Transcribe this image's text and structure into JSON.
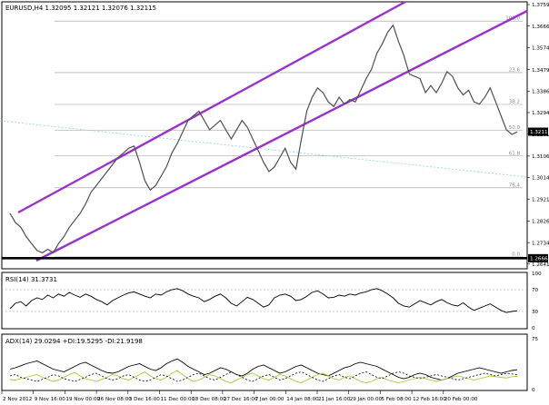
{
  "chart_data": {
    "type": "line",
    "main": {
      "header": "EURUSD,H4  1.32095 1.32121 1.32076 1.32115",
      "ylim": [
        1.2625,
        1.3767
      ],
      "price_ticks": [
        "1.37590",
        "1.36665",
        "1.35740",
        "1.34790",
        "1.33865",
        "1.32940",
        "1.32015",
        "1.31065",
        "1.30140",
        "1.29215",
        "1.28265",
        "1.27340",
        "1.26415"
      ],
      "price_tick_values": [
        1.3759,
        1.36665,
        1.3574,
        1.3479,
        1.33865,
        1.3294,
        1.32015,
        1.31065,
        1.3014,
        1.29215,
        1.28265,
        1.2734,
        1.26415
      ],
      "current_price_label": "1.32115",
      "current_price": 1.32115,
      "support_label": "1.26667",
      "support_price": 1.26667,
      "fib_levels": [
        {
          "label": "100.0",
          "value": 1.3688
        },
        {
          "label": "23.6",
          "value": 1.3466
        },
        {
          "label": "38.2",
          "value": 1.3329
        },
        {
          "label": "50.0",
          "value": 1.3218
        },
        {
          "label": "61.8",
          "value": 1.3107
        },
        {
          "label": "76.4",
          "value": 1.297
        },
        {
          "label": "0.0",
          "value": 1.2672
        }
      ],
      "price_series": [
        1.286,
        1.282,
        1.28,
        1.276,
        1.273,
        1.27,
        1.269,
        1.2705,
        1.269,
        1.273,
        1.276,
        1.28,
        1.283,
        1.286,
        1.29,
        1.295,
        1.298,
        1.301,
        1.304,
        1.307,
        1.31,
        1.312,
        1.314,
        1.315,
        1.308,
        1.3,
        1.296,
        1.298,
        1.302,
        1.306,
        1.312,
        1.316,
        1.321,
        1.326,
        1.328,
        1.33,
        1.326,
        1.322,
        1.324,
        1.326,
        1.322,
        1.318,
        1.322,
        1.326,
        1.323,
        1.318,
        1.313,
        1.308,
        1.304,
        1.306,
        1.31,
        1.314,
        1.308,
        1.305,
        1.318,
        1.33,
        1.336,
        1.34,
        1.338,
        1.334,
        1.332,
        1.336,
        1.333,
        1.335,
        1.334,
        1.339,
        1.344,
        1.348,
        1.355,
        1.359,
        1.364,
        1.367,
        1.36,
        1.354,
        1.346,
        1.345,
        1.344,
        1.338,
        1.341,
        1.338,
        1.342,
        1.347,
        1.345,
        1.34,
        1.337,
        1.339,
        1.334,
        1.333,
        1.336,
        1.34,
        1.334,
        1.328,
        1.322,
        1.32,
        1.3211
      ]
    },
    "x_ticks": [
      "2 Nov 2012",
      "9 Nov 16:00",
      "19 Nov 00:00",
      "26 Nov 08:00",
      "3 Dec 16:00",
      "11 Dec 00:00",
      "18 Dec 08:00",
      "27 Dec 16:00",
      "7 Jan 00:00",
      "14 Jan 08:00",
      "21 Jan 16:00",
      "29 Jan 00:00",
      "5 Feb 08:00",
      "12 Feb 16:00",
      "20 Feb 00:00"
    ],
    "rsi": {
      "header": "RSI(14) 31.3731",
      "ylim": [
        0,
        100
      ],
      "levels": [
        70,
        30
      ],
      "tick_labels": [
        "100",
        "70",
        "30",
        "0"
      ],
      "values": [
        35,
        45,
        48,
        40,
        50,
        55,
        52,
        60,
        55,
        62,
        58,
        65,
        60,
        56,
        62,
        58,
        52,
        48,
        42,
        50,
        55,
        60,
        64,
        66,
        62,
        58,
        55,
        62,
        60,
        66,
        70,
        72,
        68,
        62,
        58,
        55,
        48,
        52,
        58,
        62,
        55,
        45,
        40,
        48,
        56,
        52,
        45,
        38,
        42,
        55,
        60,
        62,
        58,
        50,
        52,
        58,
        65,
        68,
        62,
        55,
        56,
        60,
        58,
        62,
        60,
        64,
        66,
        70,
        72,
        68,
        62,
        55,
        45,
        40,
        38,
        44,
        50,
        46,
        42,
        48,
        52,
        46,
        42,
        40,
        46,
        38,
        32,
        36,
        40,
        44,
        38,
        32,
        28,
        30,
        31.37
      ]
    },
    "adx": {
      "header": "ADX(14) 29.0294 +DI:19.5295 -DI:21.9198",
      "ylim": [
        0,
        80
      ],
      "tick_labels": [
        "75",
        "0"
      ],
      "adx_values": [
        30,
        32,
        35,
        38,
        40,
        42,
        38,
        34,
        30,
        28,
        26,
        30,
        34,
        38,
        40,
        36,
        32,
        28,
        25,
        24,
        26,
        30,
        34,
        36,
        38,
        34,
        30,
        28,
        32,
        38,
        42,
        45,
        40,
        34,
        30,
        26,
        22,
        24,
        28,
        32,
        30,
        26,
        22,
        20,
        24,
        30,
        34,
        36,
        32,
        28,
        24,
        26,
        30,
        34,
        36,
        32,
        28,
        24,
        22,
        20,
        24,
        28,
        32,
        34,
        38,
        40,
        38,
        36,
        34,
        30,
        26,
        22,
        18,
        16,
        18,
        22,
        24,
        22,
        18,
        16,
        14,
        16,
        20,
        24,
        26,
        28,
        30,
        32,
        30,
        28,
        26,
        24,
        26,
        28,
        29.03
      ],
      "plus_di": [
        15,
        14,
        16,
        18,
        20,
        22,
        18,
        15,
        12,
        14,
        18,
        22,
        25,
        20,
        16,
        14,
        12,
        15,
        18,
        22,
        20,
        16,
        14,
        18,
        22,
        26,
        20,
        16,
        14,
        18,
        24,
        28,
        22,
        16,
        12,
        14,
        18,
        22,
        20,
        16,
        12,
        10,
        14,
        18,
        22,
        24,
        20,
        16,
        14,
        18,
        22,
        20,
        16,
        12,
        10,
        14,
        18,
        22,
        24,
        20,
        16,
        14,
        18,
        20,
        16,
        12,
        10,
        12,
        16,
        18,
        14,
        12,
        10,
        12,
        14,
        16,
        18,
        16,
        14,
        12,
        14,
        16,
        18,
        20,
        18,
        16,
        14,
        16,
        18,
        20,
        19,
        18,
        17,
        19,
        19.53
      ],
      "minus_di": [
        20,
        22,
        18,
        16,
        14,
        12,
        15,
        18,
        22,
        20,
        16,
        14,
        12,
        15,
        18,
        22,
        24,
        20,
        16,
        14,
        16,
        20,
        22,
        18,
        14,
        12,
        14,
        18,
        22,
        20,
        16,
        12,
        14,
        18,
        22,
        24,
        20,
        16,
        14,
        18,
        22,
        26,
        22,
        18,
        14,
        12,
        16,
        20,
        22,
        18,
        14,
        16,
        20,
        24,
        26,
        22,
        18,
        14,
        12,
        16,
        20,
        22,
        18,
        16,
        20,
        24,
        26,
        22,
        18,
        16,
        20,
        24,
        26,
        24,
        20,
        18,
        16,
        18,
        20,
        22,
        20,
        18,
        16,
        14,
        16,
        18,
        20,
        22,
        24,
        22,
        20,
        22,
        24,
        23,
        21.92
      ]
    }
  }
}
